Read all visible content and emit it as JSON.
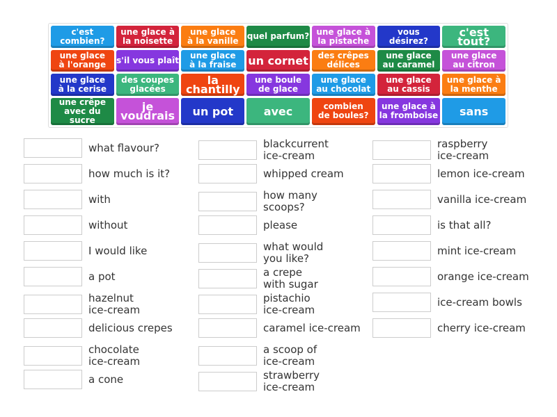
{
  "colors": {
    "blue": "#1f9be6",
    "red": "#d3243b",
    "orange": "#fb7d12",
    "darkgreen": "#1e8a46",
    "magenta": "#c552d9",
    "indigo": "#2338c9",
    "teal": "#3cb67e",
    "orangered": "#ef4511",
    "purple": "#8637df"
  },
  "tiles": [
    {
      "text": "c'est\ncombien?",
      "color": "blue"
    },
    {
      "text": "une glace à\nla noisette",
      "color": "red"
    },
    {
      "text": "une glace\nà la vanille",
      "color": "orange"
    },
    {
      "text": "quel parfum?",
      "color": "darkgreen"
    },
    {
      "text": "une glace à\nla pistache",
      "color": "magenta"
    },
    {
      "text": "vous désirez?",
      "color": "indigo"
    },
    {
      "text": "c'est tout?",
      "color": "teal",
      "big": true
    },
    {
      "text": "une glace\nà l'orange",
      "color": "orangered"
    },
    {
      "text": "s'il vous plaît",
      "color": "purple"
    },
    {
      "text": "une glace\nà la fraise",
      "color": "blue"
    },
    {
      "text": "un cornet",
      "color": "red",
      "big": true
    },
    {
      "text": "des crêpes\ndélices",
      "color": "orange"
    },
    {
      "text": "une glace\nau caramel",
      "color": "darkgreen"
    },
    {
      "text": "une glace\nau citron",
      "color": "magenta"
    },
    {
      "text": "une glace\nà la cerise",
      "color": "indigo"
    },
    {
      "text": "des coupes\nglacées",
      "color": "teal"
    },
    {
      "text": "la chantilly",
      "color": "orangered",
      "big": true
    },
    {
      "text": "une boule\nde glace",
      "color": "purple"
    },
    {
      "text": "une glace\nau chocolat",
      "color": "blue"
    },
    {
      "text": "une glace\nau cassis",
      "color": "red"
    },
    {
      "text": "une glace à\nla menthe",
      "color": "orange"
    },
    {
      "text": "une crêpe\navec du sucre",
      "color": "darkgreen"
    },
    {
      "text": "je voudrais",
      "color": "magenta",
      "big": true
    },
    {
      "text": "un pot",
      "color": "indigo",
      "big": true
    },
    {
      "text": "avec",
      "color": "teal",
      "big": true
    },
    {
      "text": "combien\nde boules?",
      "color": "orangered"
    },
    {
      "text": "une glace à\nla fromboise",
      "color": "purple"
    },
    {
      "text": "sans",
      "color": "blue",
      "big": true
    }
  ],
  "columns": [
    [
      "what flavour?",
      "how much is it?",
      "with",
      "without",
      "I would like",
      "a pot",
      "hazelnut\nice-cream",
      "delicious crepes",
      "chocolate\nice-cream",
      "a cone"
    ],
    [
      "blackcurrent\nice-cream",
      "whipped cream",
      "how many\nscoops?",
      "please",
      "what would\nyou like?",
      "a crepe\nwith sugar",
      "pistachio\nice-cream",
      "caramel ice-cream",
      "a scoop of\nice-cream",
      "strawberry\nice-cream"
    ],
    [
      "raspberry\nice-cream",
      "lemon ice-cream",
      "vanilla ice-cream",
      "is that all?",
      "mint ice-cream",
      "orange ice-cream",
      "ice-cream bowls",
      "cherry ice-cream"
    ]
  ]
}
